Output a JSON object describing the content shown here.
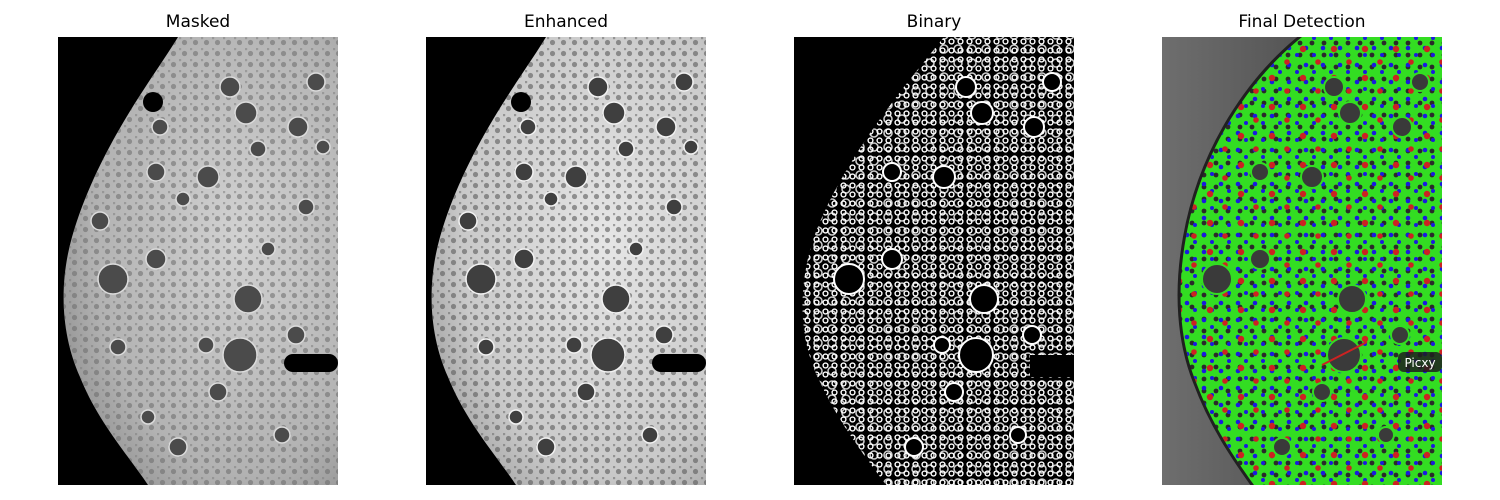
{
  "panels": [
    {
      "id": "masked",
      "title": "Masked"
    },
    {
      "id": "enhanced",
      "title": "Enhanced"
    },
    {
      "id": "binary",
      "title": "Binary"
    },
    {
      "id": "final",
      "title": "Final Detection",
      "watermark": "Picxy"
    }
  ],
  "colors": {
    "background": "#ffffff",
    "mask": "#000000",
    "foam": "#bdbdbd",
    "detection_green": "#33dd22",
    "detection_blue": "#1a1adf",
    "detection_red": "#cc2222"
  }
}
